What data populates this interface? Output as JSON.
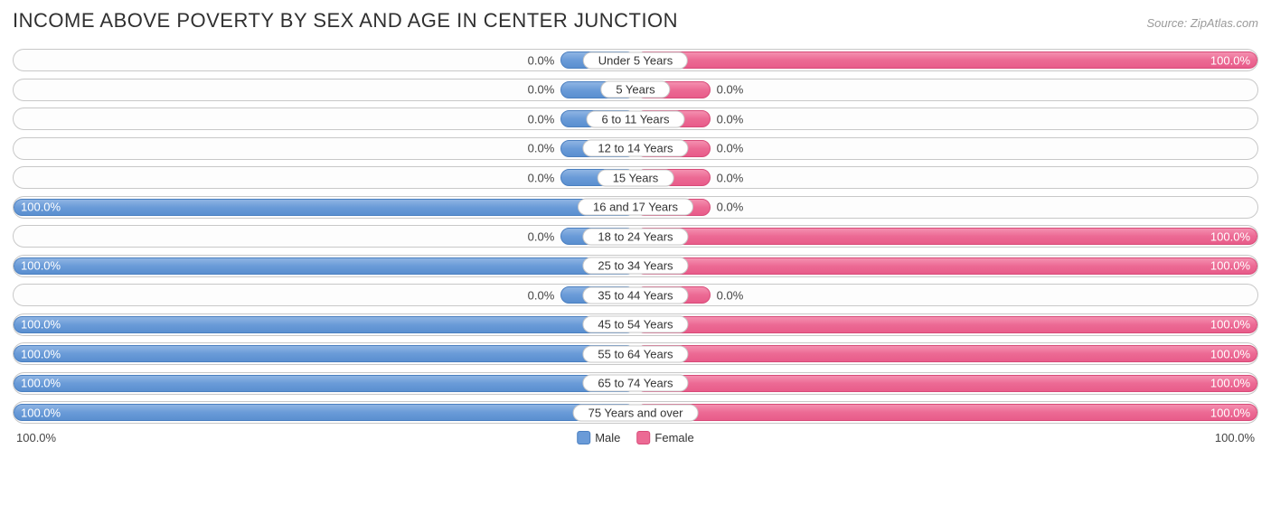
{
  "title": "INCOME ABOVE POVERTY BY SEX AND AGE IN CENTER JUNCTION",
  "source": "Source: ZipAtlas.com",
  "chart": {
    "type": "diverging-bar",
    "male_color": "#6a9bd8",
    "male_border": "#4a7fc0",
    "female_color": "#ec6a94",
    "female_border": "#d84a78",
    "track_border": "#c8c8c8",
    "track_bg": "#fdfdfd",
    "min_bar_pct": 12,
    "rows": [
      {
        "label": "Under 5 Years",
        "male": 0.0,
        "female": 100.0
      },
      {
        "label": "5 Years",
        "male": 0.0,
        "female": 0.0
      },
      {
        "label": "6 to 11 Years",
        "male": 0.0,
        "female": 0.0
      },
      {
        "label": "12 to 14 Years",
        "male": 0.0,
        "female": 0.0
      },
      {
        "label": "15 Years",
        "male": 0.0,
        "female": 0.0
      },
      {
        "label": "16 and 17 Years",
        "male": 100.0,
        "female": 0.0
      },
      {
        "label": "18 to 24 Years",
        "male": 0.0,
        "female": 100.0
      },
      {
        "label": "25 to 34 Years",
        "male": 100.0,
        "female": 100.0
      },
      {
        "label": "35 to 44 Years",
        "male": 0.0,
        "female": 0.0
      },
      {
        "label": "45 to 54 Years",
        "male": 100.0,
        "female": 100.0
      },
      {
        "label": "55 to 64 Years",
        "male": 100.0,
        "female": 100.0
      },
      {
        "label": "65 to 74 Years",
        "male": 100.0,
        "female": 100.0
      },
      {
        "label": "75 Years and over",
        "male": 100.0,
        "female": 100.0
      }
    ],
    "axis": {
      "left": "100.0%",
      "right": "100.0%"
    },
    "legend": {
      "male": "Male",
      "female": "Female"
    }
  }
}
